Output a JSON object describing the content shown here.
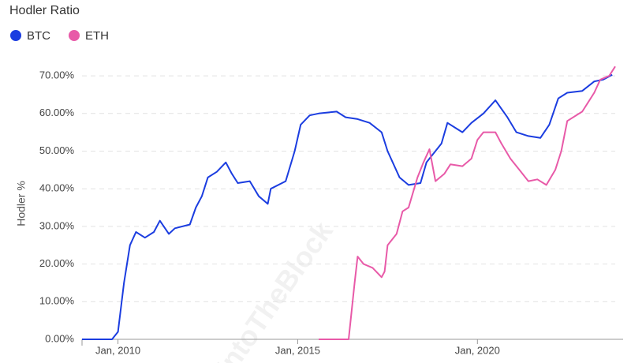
{
  "chart_data": {
    "type": "line",
    "title": "Hodler Ratio",
    "y_label": "Hodler %",
    "watermark": "IntoTheBlock",
    "legend": "top-left",
    "grid": true,
    "xlim": [
      "2009-01",
      "2023-11"
    ],
    "xticks": [
      {
        "value": "2010-01",
        "label": "Jan, 2010"
      },
      {
        "value": "2015-01",
        "label": "Jan, 2015"
      },
      {
        "value": "2020-01",
        "label": "Jan, 2020"
      }
    ],
    "ylim": [
      0,
      74
    ],
    "yticks": [
      {
        "value": 0,
        "label": "0.00%"
      },
      {
        "value": 10,
        "label": "10.00%"
      },
      {
        "value": 20,
        "label": "20.00%"
      },
      {
        "value": 30,
        "label": "30.00%"
      },
      {
        "value": 40,
        "label": "40.00%"
      },
      {
        "value": 50,
        "label": "50.00%"
      },
      {
        "value": 60,
        "label": "60.00%"
      },
      {
        "value": 70,
        "label": "70.00%"
      }
    ],
    "series": [
      {
        "name": "BTC",
        "color": "#1b3de0",
        "x": [
          "2009-01",
          "2009-11",
          "2010-01",
          "2010-03",
          "2010-05",
          "2010-07",
          "2010-10",
          "2011-01",
          "2011-03",
          "2011-06",
          "2011-08",
          "2012-01",
          "2012-03",
          "2012-05",
          "2012-07",
          "2012-10",
          "2013-01",
          "2013-03",
          "2013-05",
          "2013-09",
          "2013-12",
          "2014-03",
          "2014-04",
          "2014-09",
          "2014-12",
          "2015-02",
          "2015-05",
          "2015-08",
          "2016-02",
          "2016-05",
          "2016-09",
          "2017-01",
          "2017-05",
          "2017-07",
          "2017-11",
          "2018-02",
          "2018-06",
          "2018-08",
          "2019-01",
          "2019-03",
          "2019-06",
          "2019-08",
          "2019-11",
          "2020-03",
          "2020-07",
          "2020-11",
          "2021-02",
          "2021-06",
          "2021-10",
          "2022-01",
          "2022-04",
          "2022-07",
          "2022-12",
          "2023-04",
          "2023-07",
          "2023-10"
        ],
        "values": [
          0,
          0,
          2,
          15,
          25,
          28.5,
          27,
          28.5,
          31.5,
          28,
          29.5,
          30.5,
          35,
          38,
          43,
          44.5,
          47,
          44,
          41.5,
          42,
          38,
          36,
          40,
          42,
          50,
          57,
          59.5,
          60,
          60.5,
          59,
          58.5,
          57.5,
          55,
          50,
          43,
          41,
          41.5,
          47,
          52,
          57.5,
          56,
          55,
          57.5,
          60,
          63.5,
          59,
          55,
          54,
          53.5,
          57,
          64,
          65.5,
          66,
          68.5,
          69,
          70.3
        ]
      },
      {
        "name": "ETH",
        "color": "#e85aa8",
        "x": [
          "2015-08",
          "2016-06",
          "2016-08",
          "2016-09",
          "2016-11",
          "2017-02",
          "2017-05",
          "2017-06",
          "2017-07",
          "2017-10",
          "2017-12",
          "2018-02",
          "2018-05",
          "2018-07",
          "2018-09",
          "2018-11",
          "2019-02",
          "2019-04",
          "2019-08",
          "2019-11",
          "2020-01",
          "2020-03",
          "2020-07",
          "2020-09",
          "2020-12",
          "2021-03",
          "2021-06",
          "2021-09",
          "2021-12",
          "2022-03",
          "2022-05",
          "2022-07",
          "2022-12",
          "2023-04",
          "2023-06",
          "2023-09",
          "2023-11"
        ],
        "values": [
          0,
          0,
          15,
          22,
          20,
          19,
          16.5,
          18,
          25,
          28,
          34,
          35,
          43,
          47,
          50.5,
          42,
          44,
          46.5,
          46,
          48,
          53,
          55,
          55,
          52,
          48,
          45,
          42,
          42.5,
          41,
          45,
          50,
          58,
          60.5,
          65.5,
          69,
          70,
          72.5
        ]
      }
    ]
  }
}
